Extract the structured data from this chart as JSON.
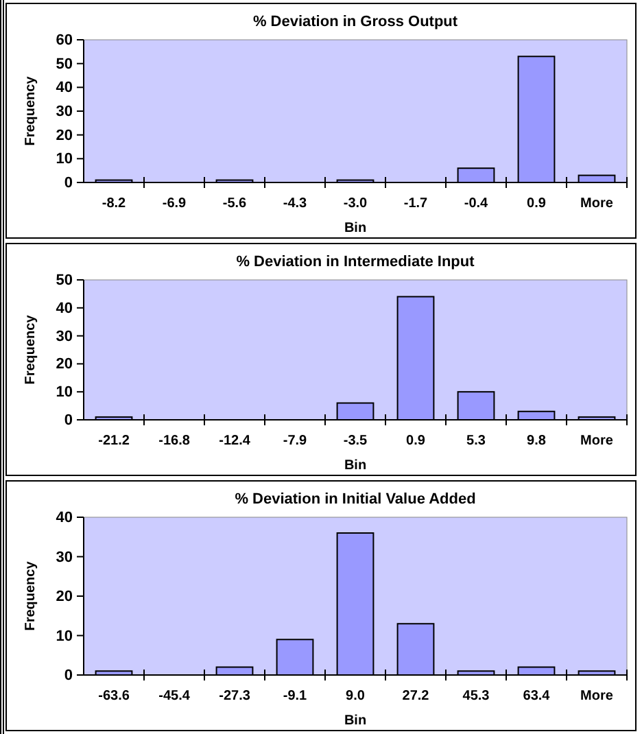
{
  "chart_data": [
    {
      "type": "bar",
      "title": "% Deviation in Gross Output",
      "xlabel": "Bin",
      "ylabel": "Frequency",
      "categories": [
        "-8.2",
        "-6.9",
        "-5.6",
        "-4.3",
        "-3.0",
        "-1.7",
        "-0.4",
        "0.9",
        "More"
      ],
      "values": [
        1,
        0,
        1,
        0,
        1,
        0,
        6,
        53,
        3
      ],
      "color": "#9999ff",
      "ylim": [
        0,
        60
      ],
      "yticks": [
        0,
        10,
        20,
        30,
        40,
        50,
        60
      ]
    },
    {
      "type": "bar",
      "title": "% Deviation in Intermediate Input",
      "xlabel": "Bin",
      "ylabel": "Frequency",
      "categories": [
        "-21.2",
        "-16.8",
        "-12.4",
        "-7.9",
        "-3.5",
        "0.9",
        "5.3",
        "9.8",
        "More"
      ],
      "values": [
        1,
        0,
        0,
        0,
        6,
        44,
        10,
        3,
        1
      ],
      "color": "#9999ff",
      "ylim": [
        0,
        50
      ],
      "yticks": [
        0,
        10,
        20,
        30,
        40,
        50
      ]
    },
    {
      "type": "bar",
      "title": "% Deviation in Initial Value Added",
      "xlabel": "Bin",
      "ylabel": "Frequency",
      "categories": [
        "-63.6",
        "-45.4",
        "-27.3",
        "-9.1",
        "9.0",
        "27.2",
        "45.3",
        "63.4",
        "More"
      ],
      "values": [
        1,
        0,
        2,
        9,
        36,
        13,
        1,
        2,
        1
      ],
      "color": "#9999ff",
      "ylim": [
        0,
        40
      ],
      "yticks": [
        0,
        10,
        20,
        30,
        40
      ]
    }
  ]
}
